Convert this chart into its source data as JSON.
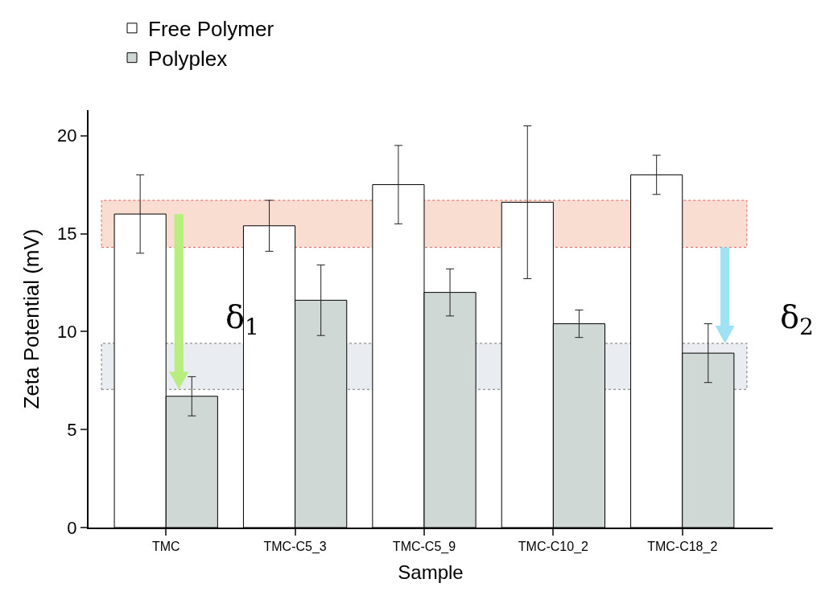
{
  "chart_data": {
    "type": "bar",
    "xlabel": "Sample",
    "ylabel": "Zeta Potential (mV)",
    "categories": [
      "TMC",
      "TMC-C5_3",
      "TMC-C5_9",
      "TMC-C10_2",
      "TMC-C18_2"
    ],
    "series": [
      {
        "name": "Free Polymer",
        "color": "#ffffff",
        "values": [
          16.0,
          15.4,
          17.5,
          16.6,
          18.0
        ],
        "errors": [
          2.0,
          1.3,
          2.0,
          3.9,
          1.0
        ]
      },
      {
        "name": "Polyplex",
        "color": "#d0d8d5",
        "values": [
          6.7,
          11.6,
          12.0,
          10.4,
          8.9
        ],
        "errors": [
          1.0,
          1.8,
          1.2,
          0.7,
          1.5
        ]
      }
    ],
    "ylim": [
      0,
      21.3
    ],
    "yticks": [
      0,
      5,
      10,
      15,
      20
    ],
    "bands": [
      {
        "axis": "y",
        "from": 14.3,
        "to": 16.7,
        "color": "#f9ddd0"
      },
      {
        "axis": "y",
        "from": 7.05,
        "to": 9.4,
        "color": "#e9ecf0"
      }
    ],
    "annotations": [
      "δ$_{1}$",
      "δ$_{2}$"
    ],
    "legend": "top left"
  }
}
